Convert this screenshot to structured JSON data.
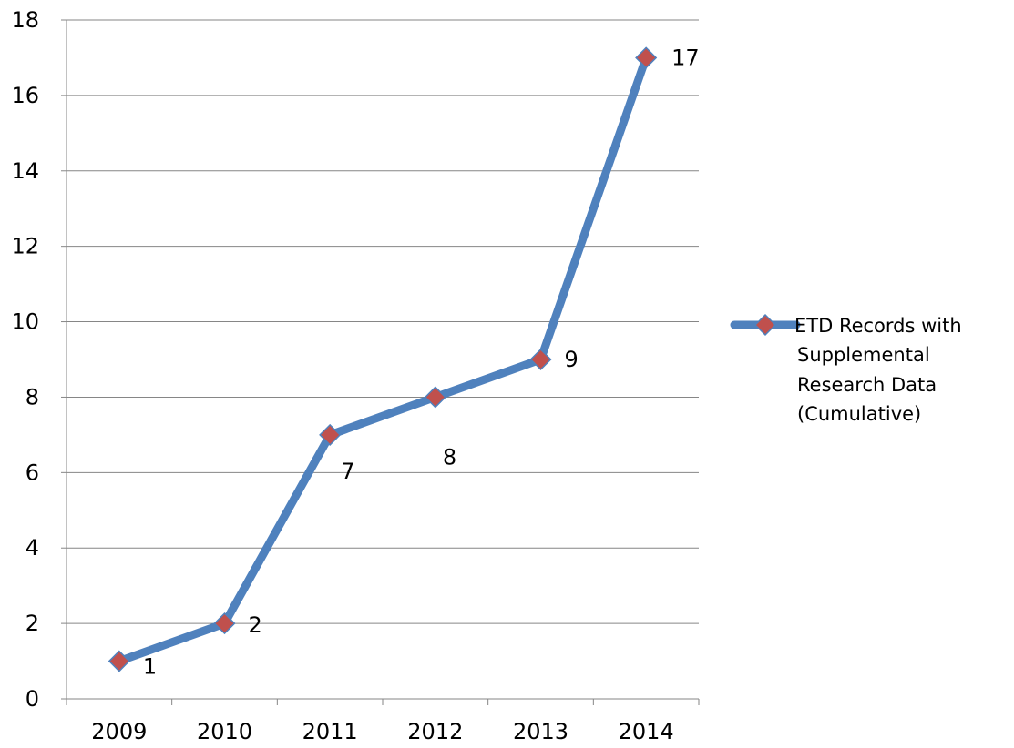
{
  "chart_data": {
    "type": "line",
    "categories": [
      "2009",
      "2010",
      "2011",
      "2012",
      "2013",
      "2014"
    ],
    "series": [
      {
        "name": "ETD Records with Supplemental Research Data (Cumulative)",
        "legend_lines": [
          "ETD Records with",
          "Supplemental",
          "Research Data",
          "(Cumulative)"
        ],
        "values": [
          1,
          2,
          7,
          8,
          9,
          17
        ],
        "line_color": "#4F81BD",
        "marker_color": "#C0504D",
        "marker": "diamond"
      }
    ],
    "data_labels": [
      "1",
      "2",
      "7",
      "8",
      "9",
      "17"
    ],
    "y_tick_labels": [
      "0",
      "2",
      "4",
      "6",
      "8",
      "10",
      "12",
      "14",
      "16",
      "18"
    ],
    "ylim": [
      0,
      18
    ],
    "y_step": 2,
    "grid": "horizontal",
    "legend_position": "right",
    "title": "",
    "xlabel": "",
    "ylabel": ""
  }
}
